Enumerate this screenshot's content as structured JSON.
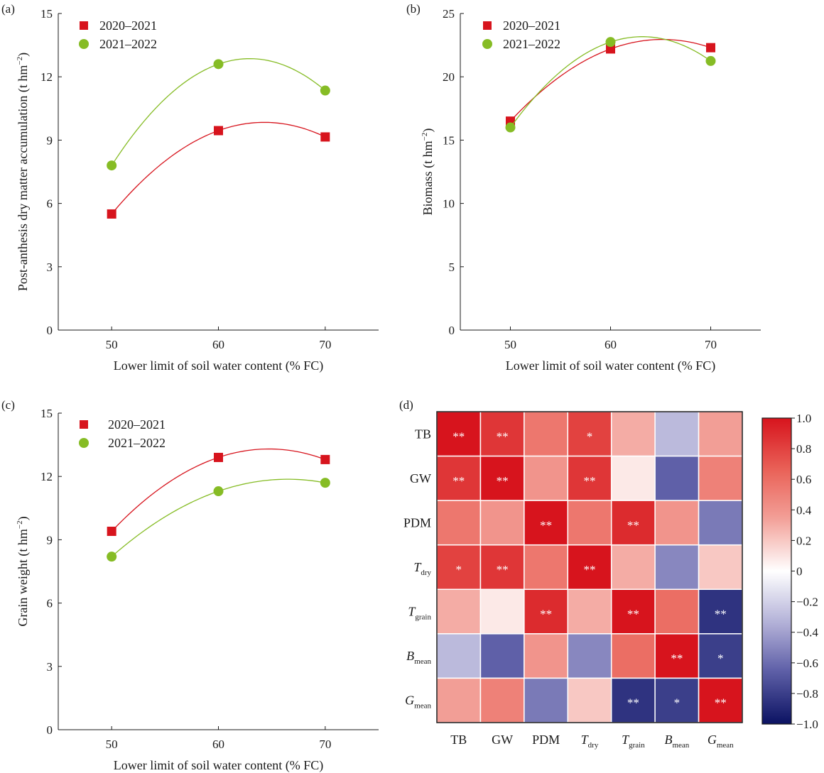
{
  "chart_data": [
    {
      "panel": "(a)",
      "type": "scatter",
      "xlabel": "Lower limit of soil water content (% FC)",
      "ylabel": "Post-anthesis dry matter accumulation (t hm",
      "ylabel_sup": "−2",
      "ylabel_close": ")",
      "x": [
        50,
        60,
        70
      ],
      "xticks": [
        "50",
        "60",
        "70"
      ],
      "xlim": [
        45,
        75
      ],
      "ylim": [
        0,
        15
      ],
      "yticks": [
        0,
        3,
        6,
        9,
        12,
        15
      ],
      "grid": false,
      "legend": "top-left",
      "series": [
        {
          "name": "2020–2021",
          "marker": "square",
          "color": "#d7141d",
          "values": [
            5.5,
            9.45,
            9.15
          ]
        },
        {
          "name": "2021–2022",
          "marker": "circle",
          "color": "#86bc25",
          "values": [
            7.8,
            12.6,
            11.35
          ]
        }
      ]
    },
    {
      "panel": "(b)",
      "type": "scatter",
      "xlabel": "Lower limit of soil water content (% FC)",
      "ylabel": "Biomass (t hm",
      "ylabel_sup": "−2",
      "ylabel_close": ")",
      "x": [
        50,
        60,
        70
      ],
      "xticks": [
        "50",
        "60",
        "70"
      ],
      "xlim": [
        45,
        75
      ],
      "ylim": [
        0,
        25
      ],
      "yticks": [
        0,
        5,
        10,
        15,
        20,
        25
      ],
      "grid": false,
      "legend": "top-left",
      "series": [
        {
          "name": "2020–2021",
          "marker": "square",
          "color": "#d7141d",
          "values": [
            16.5,
            22.2,
            22.3
          ]
        },
        {
          "name": "2021–2022",
          "marker": "circle",
          "color": "#86bc25",
          "values": [
            16.0,
            22.75,
            21.25
          ]
        }
      ]
    },
    {
      "panel": "(c)",
      "type": "scatter",
      "xlabel": "Lower limit of soil water content (% FC)",
      "ylabel": "Grain weight (t hm",
      "ylabel_sup": "−2",
      "ylabel_close": ")",
      "x": [
        50,
        60,
        70
      ],
      "xticks": [
        "50",
        "60",
        "70"
      ],
      "xlim": [
        45,
        75
      ],
      "ylim": [
        0,
        15
      ],
      "yticks": [
        0,
        3,
        6,
        9,
        12,
        15
      ],
      "grid": false,
      "legend": "top-left",
      "series": [
        {
          "name": "2020–2021",
          "marker": "square",
          "color": "#d7141d",
          "values": [
            9.4,
            12.9,
            12.8
          ]
        },
        {
          "name": "2021–2022",
          "marker": "circle",
          "color": "#86bc25",
          "values": [
            8.2,
            11.3,
            11.7
          ]
        }
      ]
    },
    {
      "panel": "(d)",
      "type": "heatmap",
      "labels": [
        {
          "main": "TB",
          "sub": ""
        },
        {
          "main": "GW",
          "sub": ""
        },
        {
          "main": "PDM",
          "sub": ""
        },
        {
          "main": "T",
          "sub": "dry"
        },
        {
          "main": "T",
          "sub": "grain"
        },
        {
          "main": "B",
          "sub": "mean"
        },
        {
          "main": "G",
          "sub": "mean"
        }
      ],
      "values": [
        [
          1.0,
          0.85,
          0.55,
          0.8,
          0.3,
          -0.3,
          0.35
        ],
        [
          0.85,
          1.0,
          0.4,
          0.85,
          0.08,
          -0.65,
          0.5
        ],
        [
          0.55,
          0.4,
          1.0,
          0.55,
          0.9,
          0.4,
          -0.55
        ],
        [
          0.8,
          0.85,
          0.55,
          1.0,
          0.3,
          -0.5,
          0.2
        ],
        [
          0.3,
          0.08,
          0.9,
          0.3,
          1.0,
          0.6,
          -0.85
        ],
        [
          -0.3,
          -0.65,
          0.4,
          -0.5,
          0.6,
          1.0,
          -0.8
        ],
        [
          0.35,
          0.5,
          -0.55,
          0.2,
          -0.85,
          -0.8,
          1.0
        ]
      ],
      "significance": [
        [
          "**",
          "**",
          "",
          "*",
          "",
          "",
          ""
        ],
        [
          "**",
          "**",
          "",
          "**",
          "",
          "",
          ""
        ],
        [
          "",
          "",
          "**",
          "",
          "**",
          "",
          ""
        ],
        [
          "*",
          "**",
          "",
          "**",
          "",
          "",
          ""
        ],
        [
          "",
          "",
          "**",
          "",
          "**",
          "",
          "**"
        ],
        [
          "",
          "",
          "",
          "",
          "",
          "**",
          "*"
        ],
        [
          "",
          "",
          "",
          "",
          "**",
          "*",
          "**"
        ]
      ],
      "colorbar": {
        "range": [
          -1.0,
          1.0
        ],
        "ticks": [
          "1.0",
          "0.8",
          "0.6",
          "0.4",
          "0.2",
          "0",
          "−0.2",
          "−0.4",
          "−0.6",
          "−0.8",
          "−1.0"
        ],
        "tick_values": [
          1.0,
          0.8,
          0.6,
          0.4,
          0.2,
          0,
          -0.2,
          -0.4,
          -0.6,
          -0.8,
          -1.0
        ],
        "colors": {
          "high": "#d7141d",
          "mid": "#ffffff",
          "low": "#0b1262"
        }
      }
    }
  ]
}
